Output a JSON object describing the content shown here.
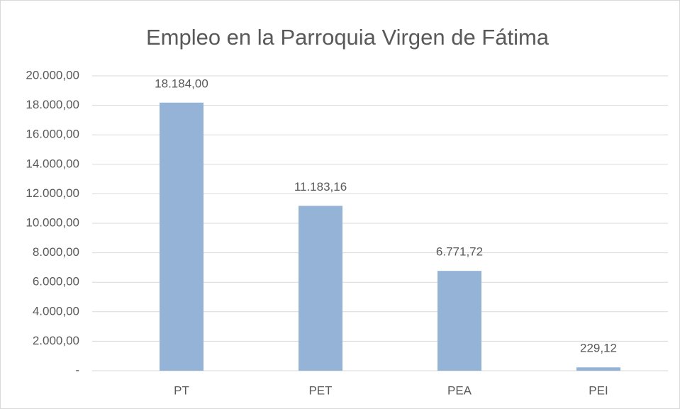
{
  "chart_data": {
    "type": "bar",
    "title": "Empleo en la Parroquia Virgen de Fátima",
    "categories": [
      "PT",
      "PET",
      "PEA",
      "PEI"
    ],
    "values": [
      18184.0,
      11183.16,
      6771.72,
      229.12
    ],
    "value_labels": [
      "18.184,00",
      "11.183,16",
      "6.771,72",
      "229,12"
    ],
    "color": "#95b3d7",
    "ylim": [
      0,
      20000
    ],
    "yticks": [
      {
        "value": 0,
        "label": "-"
      },
      {
        "value": 2000,
        "label": "2.000,00"
      },
      {
        "value": 4000,
        "label": "4.000,00"
      },
      {
        "value": 6000,
        "label": "6.000,00"
      },
      {
        "value": 8000,
        "label": "8.000,00"
      },
      {
        "value": 10000,
        "label": "10.000,00"
      },
      {
        "value": 12000,
        "label": "12.000,00"
      },
      {
        "value": 14000,
        "label": "14.000,00"
      },
      {
        "value": 16000,
        "label": "16.000,00"
      },
      {
        "value": 18000,
        "label": "18.000,00"
      },
      {
        "value": 20000,
        "label": "20.000,00"
      }
    ],
    "grid": true
  }
}
